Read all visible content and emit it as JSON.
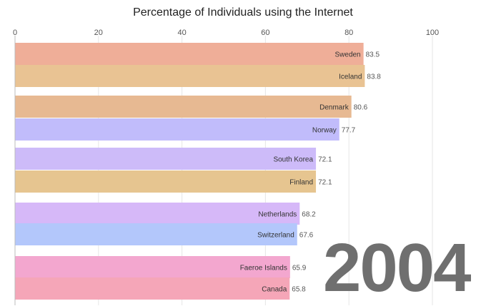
{
  "chart_data": {
    "type": "bar",
    "orientation": "horizontal",
    "title": "Percentage of Individuals using the Internet",
    "xlim": [
      0,
      100
    ],
    "xticks": [
      "0",
      "20",
      "40",
      "60",
      "80",
      "100"
    ],
    "period_label": "2004",
    "series": [
      {
        "name": "Sweden",
        "value": 83.5,
        "label": "83.5",
        "color": "#efae98"
      },
      {
        "name": "Iceland",
        "value": 83.8,
        "label": "83.8",
        "color": "#e9c393"
      },
      {
        "name": "Denmark",
        "value": 80.6,
        "label": "80.6",
        "color": "#e7b992"
      },
      {
        "name": "Norway",
        "value": 77.7,
        "label": "77.7",
        "color": "#c1bcfb"
      },
      {
        "name": "South Korea",
        "value": 72.1,
        "label": "72.1",
        "color": "#cdbbf9"
      },
      {
        "name": "Finland",
        "value": 72.1,
        "label": "72.1",
        "color": "#e6c590"
      },
      {
        "name": "Netherlands",
        "value": 68.2,
        "label": "68.2",
        "color": "#d6b8f8"
      },
      {
        "name": "Switzerland",
        "value": 67.6,
        "label": "67.6",
        "color": "#b3c7fb"
      },
      {
        "name": "Faeroe Islands",
        "value": 65.9,
        "label": "65.9",
        "color": "#f3a7cf"
      },
      {
        "name": "Canada",
        "value": 65.8,
        "label": "65.8",
        "color": "#f5a6b8"
      }
    ]
  }
}
